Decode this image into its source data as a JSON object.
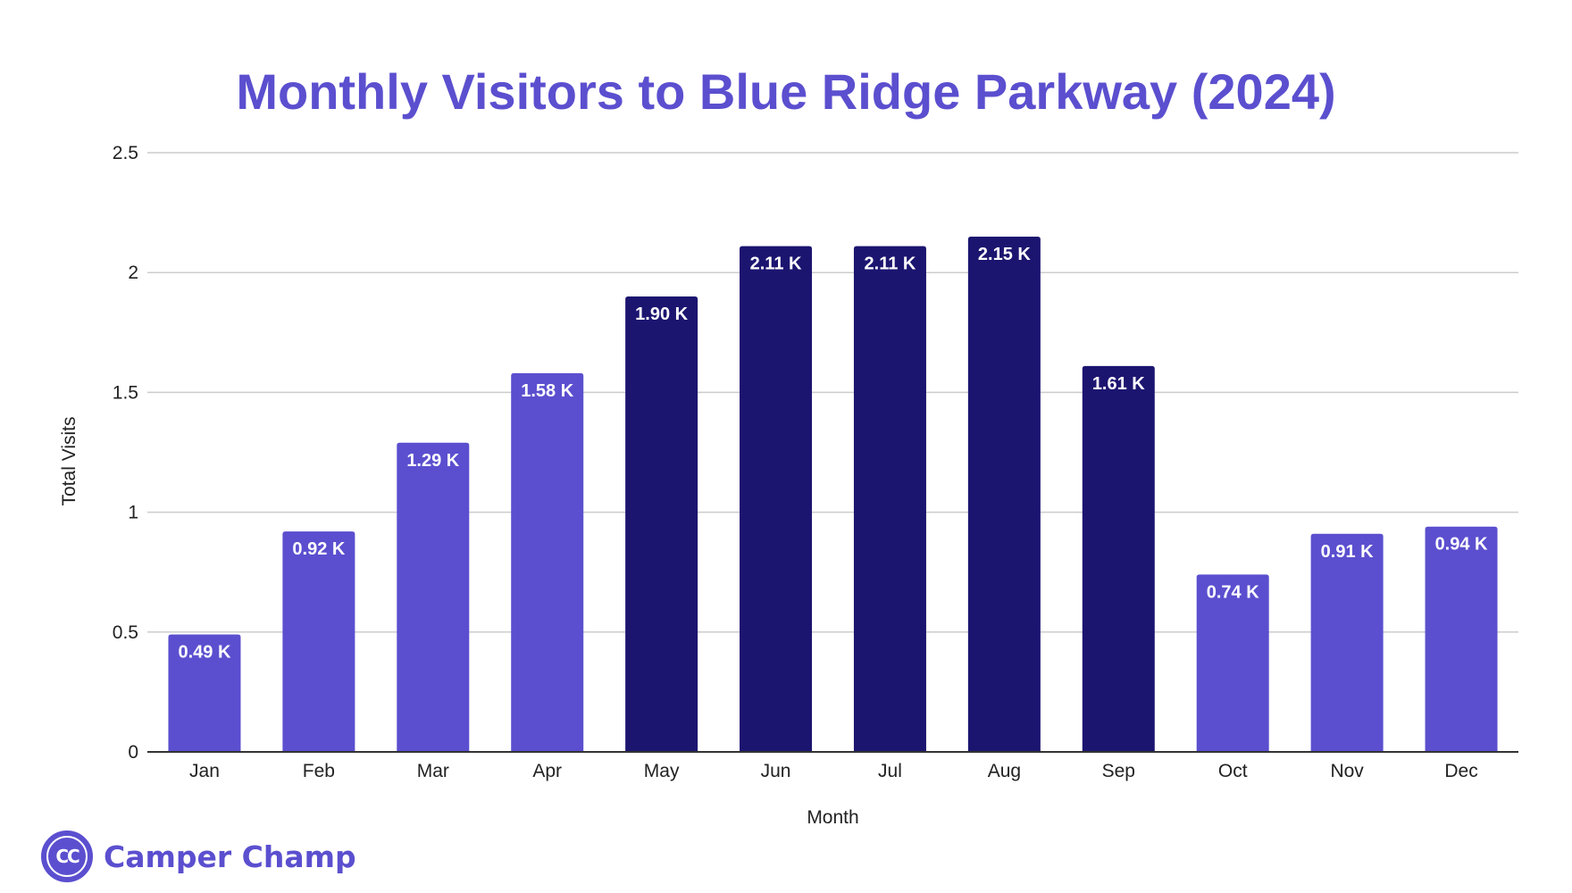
{
  "colors": {
    "title": "#5b4fcf",
    "bar_light": "#5b4fcf",
    "bar_dark": "#1c1570",
    "grid": "#cccccc",
    "axis": "#333333",
    "brand": "#5b4fcf"
  },
  "brand": {
    "logo_text": "CC",
    "name": "Camper Champ"
  },
  "chart_data": {
    "type": "bar",
    "title": "Monthly Visitors to Blue Ridge Parkway (2024)",
    "xlabel": "Month",
    "ylabel": "Total Visits",
    "categories": [
      "Jan",
      "Feb",
      "Mar",
      "Apr",
      "May",
      "Jun",
      "Jul",
      "Aug",
      "Sep",
      "Oct",
      "Nov",
      "Dec"
    ],
    "values": [
      0.49,
      0.92,
      1.29,
      1.58,
      1.9,
      2.11,
      2.11,
      2.15,
      1.61,
      0.74,
      0.91,
      0.94
    ],
    "data_labels": [
      "0.49 K",
      "0.92 K",
      "1.29 K",
      "1.58 K",
      "1.90 K",
      "2.11 K",
      "2.11 K",
      "2.15 K",
      "1.61 K",
      "0.74 K",
      "0.91 K",
      "0.94 K"
    ],
    "bar_shades": [
      "light",
      "light",
      "light",
      "light",
      "dark",
      "dark",
      "dark",
      "dark",
      "dark",
      "light",
      "light",
      "light"
    ],
    "ylim": [
      0,
      2.5
    ],
    "yticks": [
      0,
      0.5,
      1,
      1.5,
      2,
      2.5
    ],
    "ytick_labels": [
      "0",
      "0.5",
      "1",
      "1.5",
      "2",
      "2.5"
    ],
    "grid": true,
    "legend": "none"
  }
}
